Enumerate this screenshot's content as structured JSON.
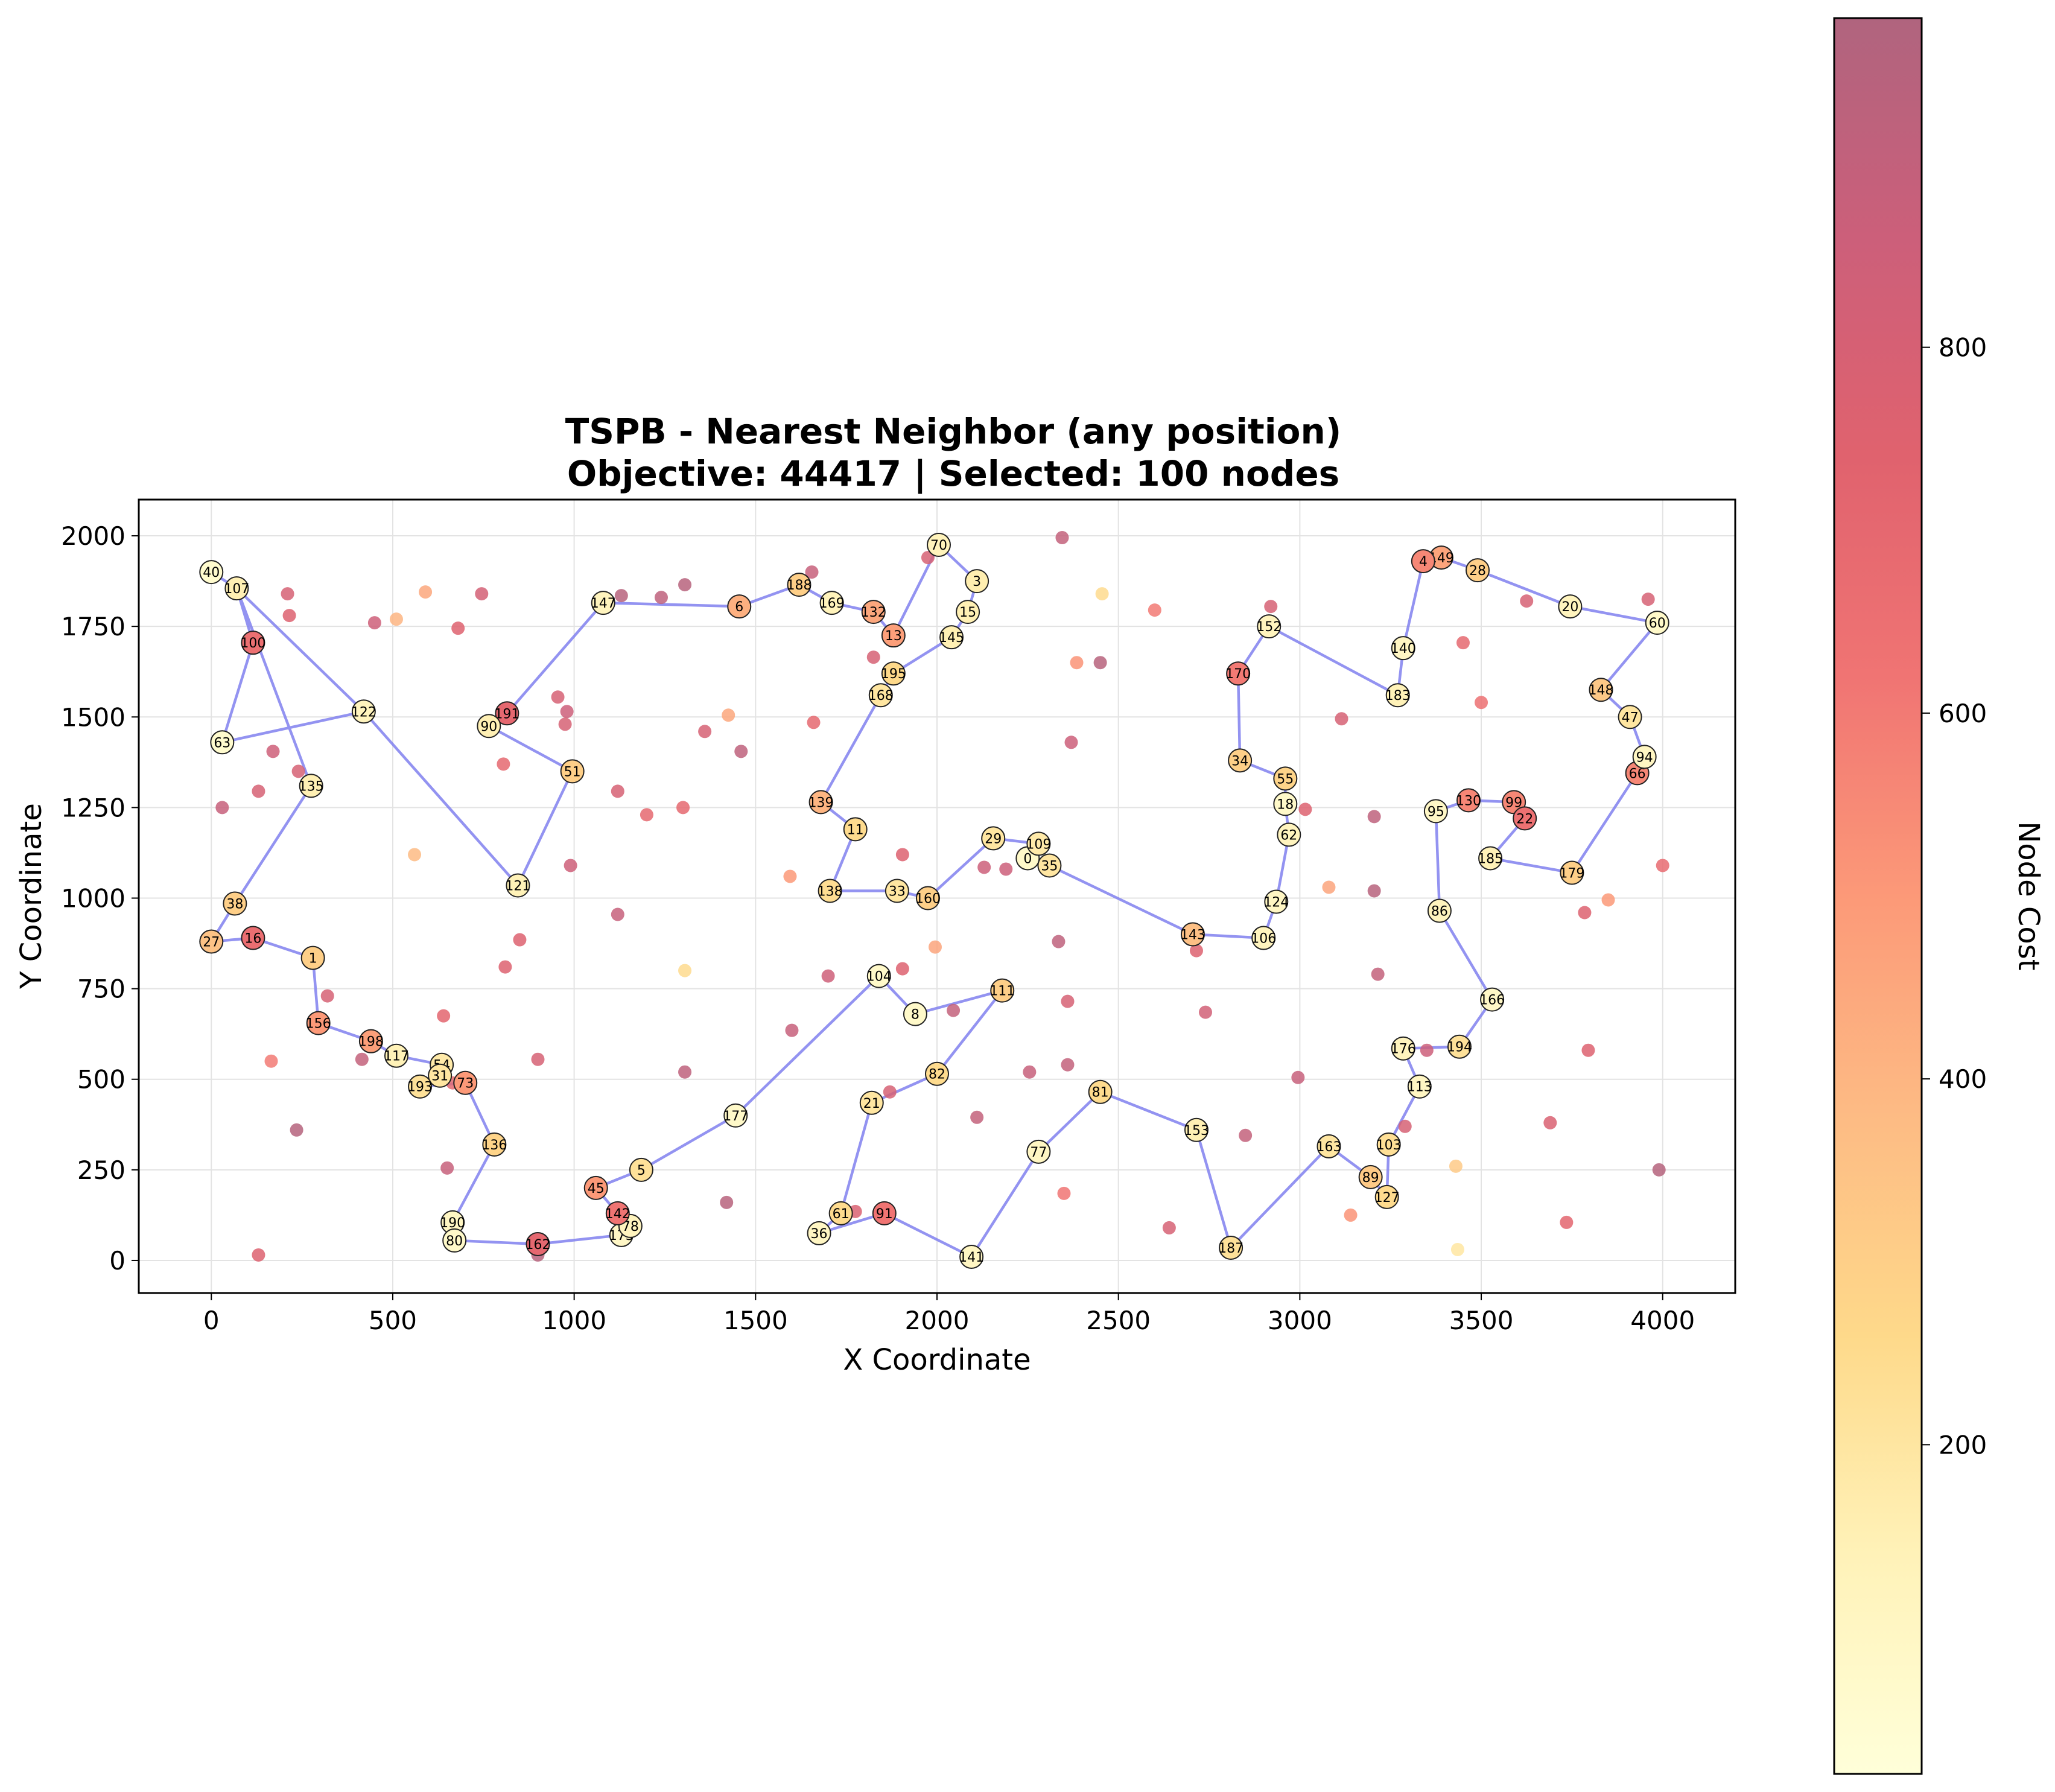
{
  "chart_data": {
    "type": "scatter",
    "title": "TSPB - Nearest Neighbor (any position)",
    "subtitle": "Objective: 44417 | Selected: 100 nodes",
    "xlabel": "X Coordinate",
    "ylabel": "Y Coordinate",
    "xlim": [
      -200,
      4200
    ],
    "ylim": [
      -90,
      2100
    ],
    "xticks": [
      0,
      500,
      1000,
      1500,
      2000,
      2500,
      3000,
      3500,
      4000
    ],
    "yticks": [
      0,
      250,
      500,
      750,
      1000,
      1250,
      1500,
      1750,
      2000
    ],
    "grid": true,
    "route_color": "#8080ee",
    "colorbar": {
      "label": "Node Cost",
      "range": [
        20,
        980
      ],
      "ticks": [
        200,
        400,
        600,
        800
      ],
      "colormap": [
        "#ffffd9",
        "#fff2b8",
        "#fed98a",
        "#fdbb84",
        "#fc9978",
        "#f07473",
        "#e0626e",
        "#cc5f7a",
        "#b0647e"
      ]
    },
    "selected_nodes": [
      {
        "id": 40,
        "x": 0,
        "y": 1900,
        "cost": 60
      },
      {
        "id": 107,
        "x": 70,
        "y": 1855,
        "cost": 150
      },
      {
        "id": 100,
        "x": 115,
        "y": 1705,
        "cost": 650
      },
      {
        "id": 63,
        "x": 30,
        "y": 1430,
        "cost": 60
      },
      {
        "id": 122,
        "x": 420,
        "y": 1515,
        "cost": 120
      },
      {
        "id": 135,
        "x": 275,
        "y": 1310,
        "cost": 150
      },
      {
        "id": 38,
        "x": 65,
        "y": 985,
        "cost": 300
      },
      {
        "id": 27,
        "x": 0,
        "y": 880,
        "cost": 350
      },
      {
        "id": 16,
        "x": 115,
        "y": 890,
        "cost": 660
      },
      {
        "id": 1,
        "x": 280,
        "y": 835,
        "cost": 300
      },
      {
        "id": 156,
        "x": 295,
        "y": 655,
        "cost": 500
      },
      {
        "id": 198,
        "x": 440,
        "y": 605,
        "cost": 480
      },
      {
        "id": 117,
        "x": 510,
        "y": 565,
        "cost": 140
      },
      {
        "id": 54,
        "x": 635,
        "y": 540,
        "cost": 180
      },
      {
        "id": 31,
        "x": 630,
        "y": 510,
        "cost": 200
      },
      {
        "id": 193,
        "x": 575,
        "y": 480,
        "cost": 220
      },
      {
        "id": 73,
        "x": 700,
        "y": 490,
        "cost": 500
      },
      {
        "id": 136,
        "x": 780,
        "y": 320,
        "cost": 280
      },
      {
        "id": 190,
        "x": 665,
        "y": 105,
        "cost": 100
      },
      {
        "id": 80,
        "x": 670,
        "y": 55,
        "cost": 80
      },
      {
        "id": 162,
        "x": 900,
        "y": 45,
        "cost": 700
      },
      {
        "id": 175,
        "x": 1130,
        "y": 70,
        "cost": 90
      },
      {
        "id": 78,
        "x": 1155,
        "y": 95,
        "cost": 120
      },
      {
        "id": 142,
        "x": 1120,
        "y": 130,
        "cost": 620
      },
      {
        "id": 45,
        "x": 1060,
        "y": 200,
        "cost": 500
      },
      {
        "id": 5,
        "x": 1185,
        "y": 250,
        "cost": 220
      },
      {
        "id": 177,
        "x": 1445,
        "y": 400,
        "cost": 80
      },
      {
        "id": 104,
        "x": 1840,
        "y": 785,
        "cost": 80
      },
      {
        "id": 8,
        "x": 1940,
        "y": 680,
        "cost": 80
      },
      {
        "id": 111,
        "x": 2180,
        "y": 745,
        "cost": 300
      },
      {
        "id": 82,
        "x": 2000,
        "y": 515,
        "cost": 250
      },
      {
        "id": 21,
        "x": 1820,
        "y": 435,
        "cost": 200
      },
      {
        "id": 61,
        "x": 1735,
        "y": 130,
        "cost": 250
      },
      {
        "id": 36,
        "x": 1675,
        "y": 75,
        "cost": 100
      },
      {
        "id": 91,
        "x": 1855,
        "y": 130,
        "cost": 620
      },
      {
        "id": 141,
        "x": 2095,
        "y": 10,
        "cost": 100
      },
      {
        "id": 77,
        "x": 2280,
        "y": 300,
        "cost": 100
      },
      {
        "id": 81,
        "x": 2450,
        "y": 465,
        "cost": 250
      },
      {
        "id": 153,
        "x": 2715,
        "y": 360,
        "cost": 150
      },
      {
        "id": 187,
        "x": 2810,
        "y": 35,
        "cost": 220
      },
      {
        "id": 163,
        "x": 3080,
        "y": 315,
        "cost": 200
      },
      {
        "id": 89,
        "x": 3195,
        "y": 230,
        "cost": 320
      },
      {
        "id": 127,
        "x": 3240,
        "y": 175,
        "cost": 250
      },
      {
        "id": 103,
        "x": 3245,
        "y": 320,
        "cost": 230
      },
      {
        "id": 113,
        "x": 3330,
        "y": 480,
        "cost": 100
      },
      {
        "id": 176,
        "x": 3285,
        "y": 585,
        "cost": 120
      },
      {
        "id": 194,
        "x": 3440,
        "y": 590,
        "cost": 220
      },
      {
        "id": 166,
        "x": 3530,
        "y": 720,
        "cost": 90
      },
      {
        "id": 86,
        "x": 3385,
        "y": 965,
        "cost": 120
      },
      {
        "id": 95,
        "x": 3375,
        "y": 1240,
        "cost": 90
      },
      {
        "id": 130,
        "x": 3465,
        "y": 1270,
        "cost": 560
      },
      {
        "id": 99,
        "x": 3590,
        "y": 1265,
        "cost": 560
      },
      {
        "id": 22,
        "x": 3620,
        "y": 1220,
        "cost": 640
      },
      {
        "id": 185,
        "x": 3525,
        "y": 1110,
        "cost": 140
      },
      {
        "id": 179,
        "x": 3750,
        "y": 1070,
        "cost": 300
      },
      {
        "id": 66,
        "x": 3930,
        "y": 1345,
        "cost": 560
      },
      {
        "id": 94,
        "x": 3950,
        "y": 1390,
        "cost": 100
      },
      {
        "id": 47,
        "x": 3910,
        "y": 1500,
        "cost": 200
      },
      {
        "id": 148,
        "x": 3830,
        "y": 1575,
        "cost": 330
      },
      {
        "id": 60,
        "x": 3985,
        "y": 1760,
        "cost": 80
      },
      {
        "id": 20,
        "x": 3745,
        "y": 1805,
        "cost": 120
      },
      {
        "id": 28,
        "x": 3490,
        "y": 1905,
        "cost": 300
      },
      {
        "id": 149,
        "x": 3390,
        "y": 1940,
        "cost": 460
      },
      {
        "id": 4,
        "x": 3340,
        "y": 1930,
        "cost": 560
      },
      {
        "id": 140,
        "x": 3285,
        "y": 1690,
        "cost": 100
      },
      {
        "id": 183,
        "x": 3270,
        "y": 1560,
        "cost": 140
      },
      {
        "id": 152,
        "x": 2915,
        "y": 1750,
        "cost": 120
      },
      {
        "id": 170,
        "x": 2830,
        "y": 1620,
        "cost": 600
      },
      {
        "id": 34,
        "x": 2835,
        "y": 1380,
        "cost": 300
      },
      {
        "id": 55,
        "x": 2960,
        "y": 1330,
        "cost": 280
      },
      {
        "id": 18,
        "x": 2960,
        "y": 1260,
        "cost": 80
      },
      {
        "id": 62,
        "x": 2970,
        "y": 1175,
        "cost": 120
      },
      {
        "id": 124,
        "x": 2935,
        "y": 990,
        "cost": 100
      },
      {
        "id": 106,
        "x": 2900,
        "y": 890,
        "cost": 120
      },
      {
        "id": 143,
        "x": 2705,
        "y": 900,
        "cost": 360
      },
      {
        "id": 35,
        "x": 2310,
        "y": 1090,
        "cost": 200
      },
      {
        "id": 0,
        "x": 2250,
        "y": 1110,
        "cost": 80
      },
      {
        "id": 109,
        "x": 2280,
        "y": 1150,
        "cost": 180
      },
      {
        "id": 29,
        "x": 2155,
        "y": 1165,
        "cost": 200
      },
      {
        "id": 160,
        "x": 1975,
        "y": 1000,
        "cost": 300
      },
      {
        "id": 33,
        "x": 1890,
        "y": 1020,
        "cost": 200
      },
      {
        "id": 138,
        "x": 1705,
        "y": 1020,
        "cost": 240
      },
      {
        "id": 11,
        "x": 1775,
        "y": 1190,
        "cost": 250
      },
      {
        "id": 139,
        "x": 1680,
        "y": 1265,
        "cost": 400
      },
      {
        "id": 168,
        "x": 1845,
        "y": 1560,
        "cost": 200
      },
      {
        "id": 195,
        "x": 1880,
        "y": 1620,
        "cost": 260
      },
      {
        "id": 145,
        "x": 2040,
        "y": 1720,
        "cost": 150
      },
      {
        "id": 15,
        "x": 2085,
        "y": 1790,
        "cost": 150
      },
      {
        "id": 3,
        "x": 2110,
        "y": 1875,
        "cost": 160
      },
      {
        "id": 70,
        "x": 2005,
        "y": 1975,
        "cost": 130
      },
      {
        "id": 13,
        "x": 1880,
        "y": 1725,
        "cost": 480
      },
      {
        "id": 132,
        "x": 1825,
        "y": 1790,
        "cost": 450
      },
      {
        "id": 169,
        "x": 1710,
        "y": 1815,
        "cost": 130
      },
      {
        "id": 188,
        "x": 1620,
        "y": 1865,
        "cost": 300
      },
      {
        "id": 6,
        "x": 1455,
        "y": 1805,
        "cost": 420
      },
      {
        "id": 147,
        "x": 1080,
        "y": 1815,
        "cost": 120
      },
      {
        "id": 191,
        "x": 815,
        "y": 1510,
        "cost": 700
      },
      {
        "id": 90,
        "x": 765,
        "y": 1475,
        "cost": 150
      },
      {
        "id": 51,
        "x": 995,
        "y": 1350,
        "cost": 300
      },
      {
        "id": 121,
        "x": 845,
        "y": 1035,
        "cost": 140
      }
    ],
    "route_order": [
      40,
      107,
      122,
      63,
      100,
      107,
      135,
      38,
      27,
      16,
      1,
      156,
      198,
      117,
      54,
      31,
      193,
      73,
      136,
      190,
      80,
      162,
      175,
      78,
      142,
      45,
      5,
      177,
      104,
      8,
      111,
      82,
      21,
      61,
      36,
      91,
      141,
      77,
      81,
      153,
      187,
      163,
      89,
      127,
      103,
      113,
      176,
      194,
      166,
      86,
      95,
      130,
      99,
      22,
      185,
      179,
      66,
      94,
      47,
      148,
      60,
      20,
      28,
      149,
      4,
      140,
      183,
      152,
      170,
      34,
      55,
      18,
      62,
      124,
      106,
      143,
      35,
      0,
      109,
      29,
      160,
      33,
      138,
      11,
      139,
      168,
      195,
      145,
      15,
      3,
      70,
      13,
      132,
      169,
      188,
      6,
      147,
      191,
      90,
      51,
      121,
      122
    ],
    "unselected_nodes": [
      {
        "x": 210,
        "y": 1840,
        "cost": 800
      },
      {
        "x": 215,
        "y": 1780,
        "cost": 760
      },
      {
        "x": 450,
        "y": 1760,
        "cost": 850
      },
      {
        "x": 510,
        "y": 1770,
        "cost": 400
      },
      {
        "x": 590,
        "y": 1845,
        "cost": 450
      },
      {
        "x": 680,
        "y": 1745,
        "cost": 750
      },
      {
        "x": 745,
        "y": 1840,
        "cost": 820
      },
      {
        "x": 1130,
        "y": 1835,
        "cost": 950
      },
      {
        "x": 1240,
        "y": 1830,
        "cost": 920
      },
      {
        "x": 1305,
        "y": 1865,
        "cost": 950
      },
      {
        "x": 1655,
        "y": 1900,
        "cost": 880
      },
      {
        "x": 1975,
        "y": 1940,
        "cost": 800
      },
      {
        "x": 2345,
        "y": 1995,
        "cost": 900
      },
      {
        "x": 2455,
        "y": 1840,
        "cost": 250
      },
      {
        "x": 2600,
        "y": 1795,
        "cost": 600
      },
      {
        "x": 2385,
        "y": 1650,
        "cost": 520
      },
      {
        "x": 2450,
        "y": 1650,
        "cost": 950
      },
      {
        "x": 1825,
        "y": 1665,
        "cost": 800
      },
      {
        "x": 2370,
        "y": 1430,
        "cost": 860
      },
      {
        "x": 2920,
        "y": 1805,
        "cost": 800
      },
      {
        "x": 3115,
        "y": 1495,
        "cost": 800
      },
      {
        "x": 3450,
        "y": 1705,
        "cost": 700
      },
      {
        "x": 3500,
        "y": 1540,
        "cost": 650
      },
      {
        "x": 3625,
        "y": 1820,
        "cost": 800
      },
      {
        "x": 3960,
        "y": 1825,
        "cost": 800
      },
      {
        "x": 4000,
        "y": 1090,
        "cost": 680
      },
      {
        "x": 3850,
        "y": 995,
        "cost": 500
      },
      {
        "x": 3785,
        "y": 960,
        "cost": 760
      },
      {
        "x": 3205,
        "y": 1225,
        "cost": 920
      },
      {
        "x": 3015,
        "y": 1245,
        "cost": 760
      },
      {
        "x": 3080,
        "y": 1030,
        "cost": 460
      },
      {
        "x": 3205,
        "y": 1020,
        "cost": 950
      },
      {
        "x": 3215,
        "y": 790,
        "cost": 900
      },
      {
        "x": 3350,
        "y": 580,
        "cost": 860
      },
      {
        "x": 3290,
        "y": 370,
        "cost": 800
      },
      {
        "x": 3430,
        "y": 260,
        "cost": 320
      },
      {
        "x": 3435,
        "y": 30,
        "cost": 200
      },
      {
        "x": 3140,
        "y": 125,
        "cost": 520
      },
      {
        "x": 3690,
        "y": 380,
        "cost": 780
      },
      {
        "x": 3735,
        "y": 105,
        "cost": 720
      },
      {
        "x": 3795,
        "y": 580,
        "cost": 760
      },
      {
        "x": 3990,
        "y": 250,
        "cost": 960
      },
      {
        "x": 2995,
        "y": 505,
        "cost": 880
      },
      {
        "x": 2740,
        "y": 685,
        "cost": 830
      },
      {
        "x": 2715,
        "y": 855,
        "cost": 760
      },
      {
        "x": 2335,
        "y": 880,
        "cost": 920
      },
      {
        "x": 2360,
        "y": 715,
        "cost": 800
      },
      {
        "x": 2360,
        "y": 540,
        "cost": 900
      },
      {
        "x": 2255,
        "y": 520,
        "cost": 880
      },
      {
        "x": 2110,
        "y": 395,
        "cost": 900
      },
      {
        "x": 2045,
        "y": 690,
        "cost": 900
      },
      {
        "x": 1995,
        "y": 865,
        "cost": 460
      },
      {
        "x": 1905,
        "y": 805,
        "cost": 760
      },
      {
        "x": 1700,
        "y": 785,
        "cost": 850
      },
      {
        "x": 1600,
        "y": 635,
        "cost": 880
      },
      {
        "x": 1870,
        "y": 465,
        "cost": 800
      },
      {
        "x": 1775,
        "y": 135,
        "cost": 780
      },
      {
        "x": 2130,
        "y": 1085,
        "cost": 860
      },
      {
        "x": 2190,
        "y": 1080,
        "cost": 860
      },
      {
        "x": 1905,
        "y": 1120,
        "cost": 760
      },
      {
        "x": 2350,
        "y": 185,
        "cost": 620
      },
      {
        "x": 2640,
        "y": 90,
        "cost": 800
      },
      {
        "x": 2850,
        "y": 345,
        "cost": 900
      },
      {
        "x": 1420,
        "y": 160,
        "cost": 950
      },
      {
        "x": 1305,
        "y": 520,
        "cost": 920
      },
      {
        "x": 1305,
        "y": 800,
        "cost": 250
      },
      {
        "x": 1120,
        "y": 955,
        "cost": 880
      },
      {
        "x": 990,
        "y": 1090,
        "cost": 850
      },
      {
        "x": 1120,
        "y": 1295,
        "cost": 800
      },
      {
        "x": 1200,
        "y": 1230,
        "cost": 700
      },
      {
        "x": 1300,
        "y": 1250,
        "cost": 700
      },
      {
        "x": 1360,
        "y": 1460,
        "cost": 800
      },
      {
        "x": 1425,
        "y": 1505,
        "cost": 450
      },
      {
        "x": 1460,
        "y": 1405,
        "cost": 920
      },
      {
        "x": 1660,
        "y": 1485,
        "cost": 700
      },
      {
        "x": 1595,
        "y": 1060,
        "cost": 500
      },
      {
        "x": 955,
        "y": 1555,
        "cost": 800
      },
      {
        "x": 980,
        "y": 1515,
        "cost": 860
      },
      {
        "x": 975,
        "y": 1480,
        "cost": 800
      },
      {
        "x": 805,
        "y": 1370,
        "cost": 700
      },
      {
        "x": 560,
        "y": 1120,
        "cost": 380
      },
      {
        "x": 850,
        "y": 885,
        "cost": 760
      },
      {
        "x": 810,
        "y": 810,
        "cost": 760
      },
      {
        "x": 900,
        "y": 555,
        "cost": 800
      },
      {
        "x": 640,
        "y": 675,
        "cost": 720
      },
      {
        "x": 650,
        "y": 255,
        "cost": 880
      },
      {
        "x": 665,
        "y": 490,
        "cost": 700
      },
      {
        "x": 900,
        "y": 15,
        "cost": 950
      },
      {
        "x": 415,
        "y": 555,
        "cost": 900
      },
      {
        "x": 320,
        "y": 730,
        "cost": 800
      },
      {
        "x": 165,
        "y": 550,
        "cost": 600
      },
      {
        "x": 235,
        "y": 360,
        "cost": 960
      },
      {
        "x": 130,
        "y": 15,
        "cost": 760
      },
      {
        "x": 30,
        "y": 1250,
        "cost": 880
      },
      {
        "x": 130,
        "y": 1295,
        "cost": 800
      },
      {
        "x": 170,
        "y": 1405,
        "cost": 850
      },
      {
        "x": 240,
        "y": 1350,
        "cost": 800
      }
    ]
  }
}
